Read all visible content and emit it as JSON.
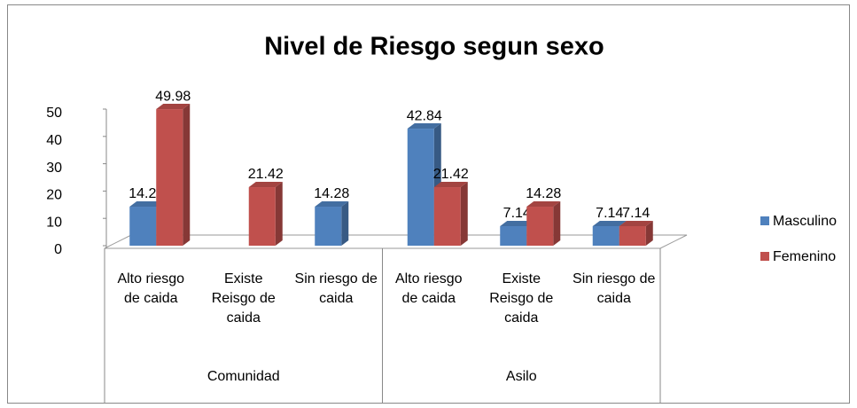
{
  "chart_data": {
    "type": "bar3d",
    "title": "Nivel de Riesgo segun sexo",
    "categories": [
      "Alto riesgo de caida",
      "Existe Reisgo de caida",
      "Sin riesgo de caida",
      "Alto riesgo de caida",
      "Existe Reisgo de caida",
      "Sin riesgo de caida"
    ],
    "groups": [
      "Comunidad",
      "Asilo"
    ],
    "series": [
      {
        "name": "Masculino",
        "color": "#4f81bd",
        "values": [
          14.28,
          null,
          14.28,
          42.84,
          7.14,
          7.14
        ]
      },
      {
        "name": "Femenino",
        "color": "#c0504d",
        "values": [
          49.98,
          21.42,
          null,
          21.42,
          14.28,
          7.14
        ]
      }
    ],
    "ylim": [
      0,
      50
    ],
    "yticks": [
      0,
      10,
      20,
      30,
      40,
      50
    ],
    "legend": "right"
  }
}
